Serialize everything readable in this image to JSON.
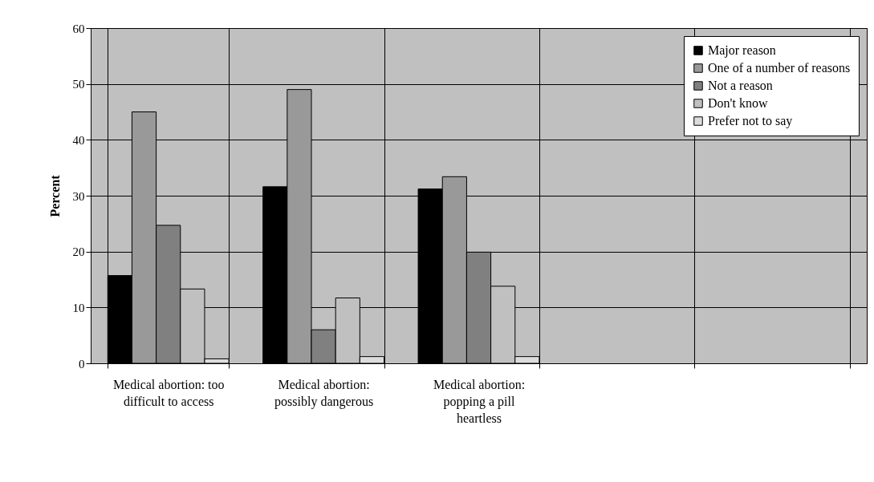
{
  "chart_data": {
    "type": "bar",
    "ylabel": "Percent",
    "categories": [
      "Medical abortion: too difficult to access",
      "Medical abortion: possibly dangerous",
      "Medical abortion: popping a pill heartless",
      null,
      null
    ],
    "series": [
      {
        "name": "Major reason",
        "color": "#000000",
        "values": [
          15.7,
          31.6,
          31.2,
          null,
          null
        ]
      },
      {
        "name": "One of a number of reasons",
        "color": "#999999",
        "values": [
          45.0,
          49.0,
          33.4,
          null,
          null
        ]
      },
      {
        "name": "Not a reason",
        "color": "#808080",
        "values": [
          24.7,
          6.0,
          19.9,
          null,
          null
        ]
      },
      {
        "name": "Don't know",
        "color": "#c0c0c0",
        "values": [
          13.3,
          11.7,
          13.8,
          null,
          null
        ]
      },
      {
        "name": "Prefer not to say",
        "color": "#dcdcdc",
        "values": [
          0.8,
          1.2,
          1.2,
          null,
          null
        ]
      }
    ],
    "ylim": [
      0,
      60
    ],
    "yticks": [
      0,
      10,
      20,
      30,
      40,
      50,
      60
    ],
    "grid": true,
    "legend": "top right"
  }
}
